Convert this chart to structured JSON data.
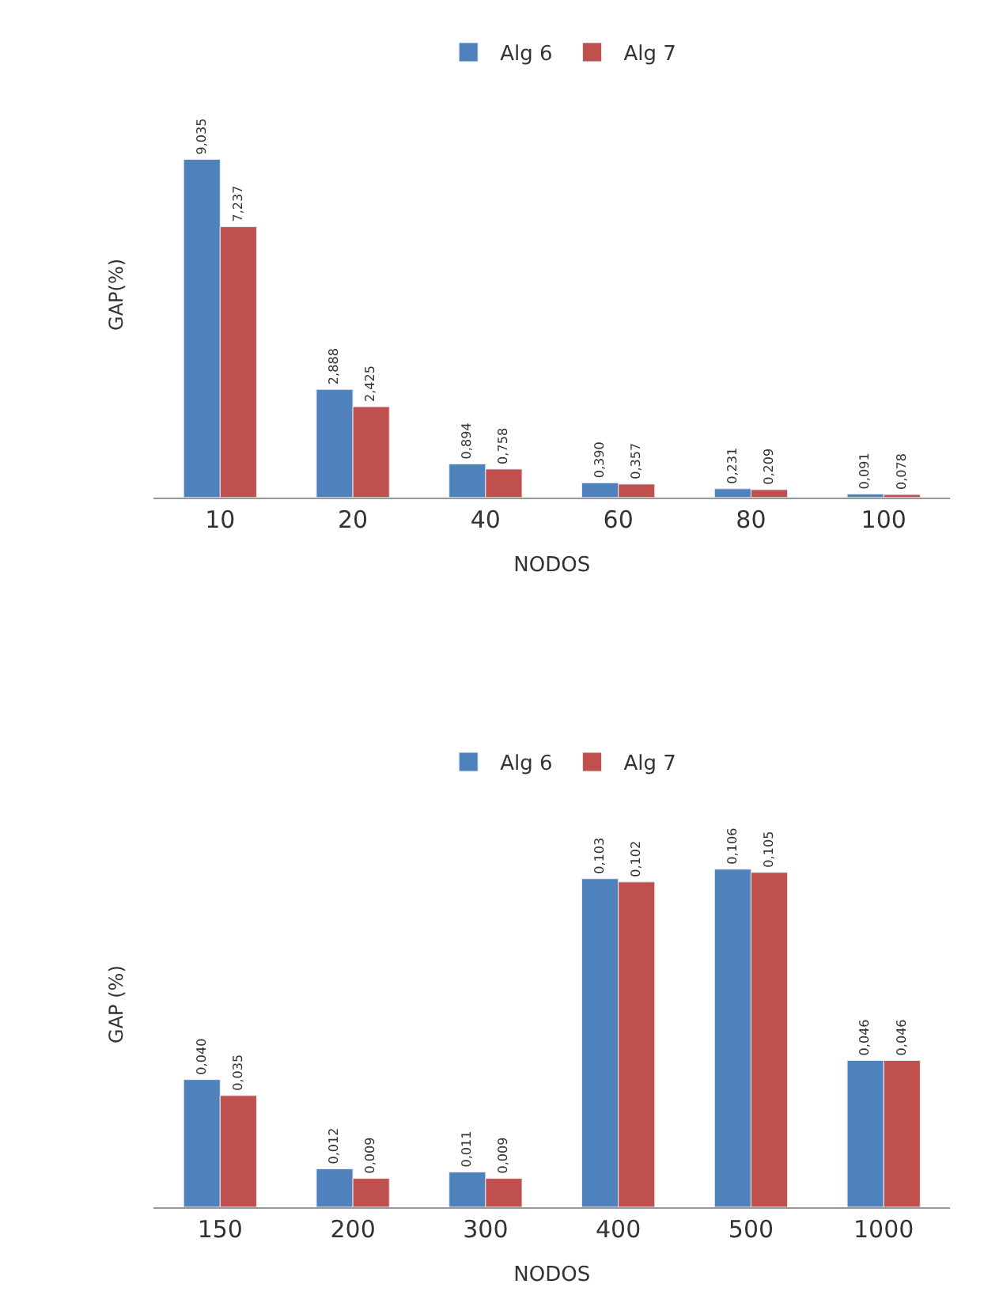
{
  "chart_data": [
    {
      "type": "bar",
      "ylabel": "GAP(%)",
      "xlabel": "NODOS",
      "categories": [
        "10",
        "20",
        "40",
        "60",
        "80",
        "100"
      ],
      "legend": "top",
      "series": [
        {
          "name": "Alg 6",
          "color": "#4f81bd",
          "values": [
            9.035,
            2.888,
            0.894,
            0.39,
            0.231,
            0.091
          ],
          "value_labels": [
            "9,035",
            "2,888",
            "0,894",
            "0,390",
            "0,231",
            "0,091"
          ]
        },
        {
          "name": "Alg 7",
          "color": "#c0504d",
          "values": [
            7.237,
            2.425,
            0.758,
            0.357,
            0.209,
            0.078
          ],
          "value_labels": [
            "7,237",
            "2,425",
            "0,758",
            "0,357",
            "0,209",
            "0,078"
          ]
        }
      ]
    },
    {
      "type": "bar",
      "ylabel": "GAP (%)",
      "xlabel": "NODOS",
      "categories": [
        "150",
        "200",
        "300",
        "400",
        "500",
        "1000"
      ],
      "legend": "top",
      "series": [
        {
          "name": "Alg 6",
          "color": "#4f81bd",
          "values": [
            0.04,
            0.012,
            0.011,
            0.103,
            0.106,
            0.046
          ],
          "value_labels": [
            "0,040",
            "0,012",
            "0,011",
            "0,103",
            "0,106",
            "0,046"
          ]
        },
        {
          "name": "Alg 7",
          "color": "#c0504d",
          "values": [
            0.035,
            0.009,
            0.009,
            0.102,
            0.105,
            0.046
          ],
          "value_labels": [
            "0,035",
            "0,009",
            "0,009",
            "0,102",
            "0,105",
            "0,046"
          ]
        }
      ]
    }
  ]
}
